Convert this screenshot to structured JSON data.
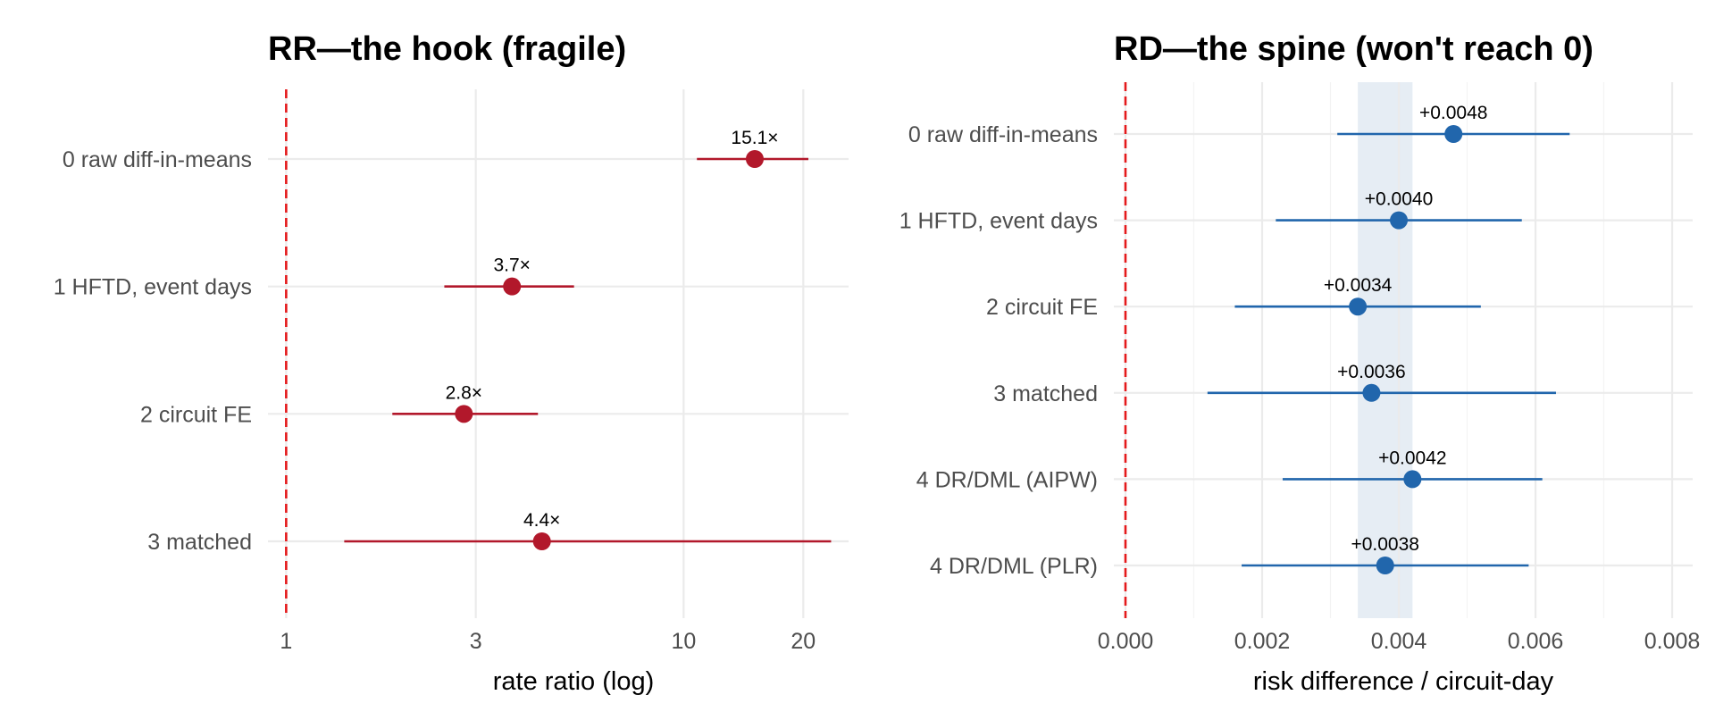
{
  "chart_data": [
    {
      "type": "forest",
      "title": "RR—the hook (fragile)",
      "xlabel": "rate ratio (log)",
      "ylabel": "",
      "xscale": "log",
      "xlim": [
        0.9,
        26
      ],
      "xticks": [
        1,
        3,
        10,
        20
      ],
      "xtick_labels": [
        "1",
        "3",
        "10",
        "20"
      ],
      "reference_line": 1,
      "reference_color": "#e41a1c",
      "color": "#b2182b",
      "grid": true,
      "rows": [
        {
          "label": "0 raw diff-in-means",
          "estimate": 15.1,
          "lower": 10.8,
          "upper": 20.6,
          "text": "15.1×"
        },
        {
          "label": "1 HFTD, event days",
          "estimate": 3.7,
          "lower": 2.5,
          "upper": 5.3,
          "text": "3.7×"
        },
        {
          "label": "2 circuit FE",
          "estimate": 2.8,
          "lower": 1.85,
          "upper": 4.3,
          "text": "2.8×"
        },
        {
          "label": "3 matched",
          "estimate": 4.4,
          "lower": 1.4,
          "upper": 23.5,
          "text": "4.4×"
        }
      ]
    },
    {
      "type": "forest",
      "title": "RD—the spine (won't reach 0)",
      "xlabel": "risk difference / circuit-day",
      "ylabel": "",
      "xscale": "linear",
      "xlim": [
        -0.00017,
        0.0083
      ],
      "xticks": [
        0,
        0.002,
        0.004,
        0.006,
        0.008
      ],
      "xtick_labels": [
        "0.000",
        "0.002",
        "0.004",
        "0.006",
        "0.008"
      ],
      "reference_line": 0,
      "reference_color": "#e41a1c",
      "color": "#2166ac",
      "band": [
        0.0034,
        0.0042
      ],
      "band_color": "#e6edf4",
      "grid": true,
      "rows": [
        {
          "label": "0 raw diff-in-means",
          "estimate": 0.0048,
          "lower": 0.0031,
          "upper": 0.0065,
          "text": "+0.0048"
        },
        {
          "label": "1 HFTD, event days",
          "estimate": 0.004,
          "lower": 0.0022,
          "upper": 0.0058,
          "text": "+0.0040"
        },
        {
          "label": "2 circuit FE",
          "estimate": 0.0034,
          "lower": 0.0016,
          "upper": 0.0052,
          "text": "+0.0034"
        },
        {
          "label": "3 matched",
          "estimate": 0.0036,
          "lower": 0.0012,
          "upper": 0.0063,
          "text": "+0.0036"
        },
        {
          "label": "4 DR/DML (AIPW)",
          "estimate": 0.0042,
          "lower": 0.0023,
          "upper": 0.0061,
          "text": "+0.0042"
        },
        {
          "label": "4 DR/DML (PLR)",
          "estimate": 0.0038,
          "lower": 0.0017,
          "upper": 0.0059,
          "text": "+0.0038"
        }
      ]
    }
  ]
}
